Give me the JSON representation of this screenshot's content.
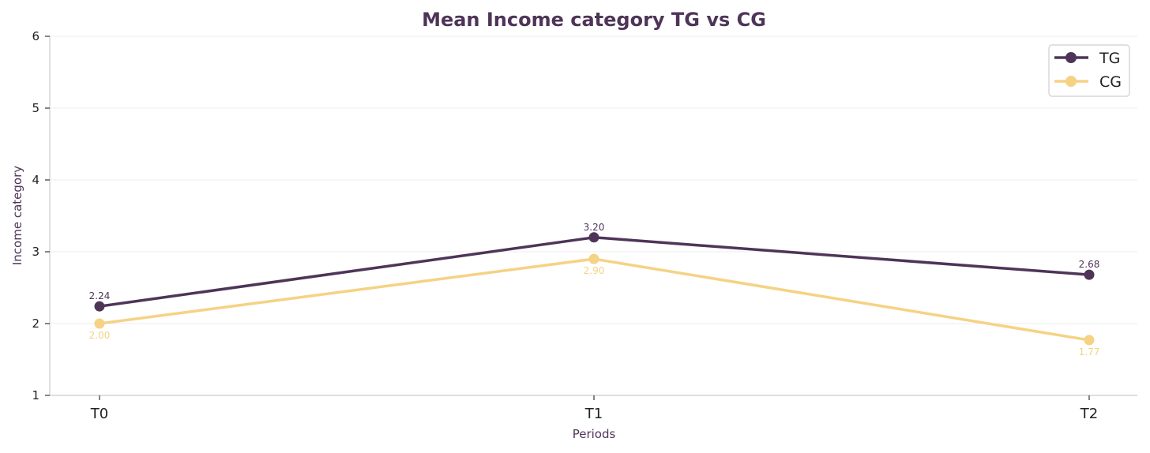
{
  "chart_data": {
    "type": "line",
    "title": "Mean Income category TG vs CG",
    "xlabel": "Periods",
    "ylabel": "Income category",
    "categories": [
      "T0",
      "T1",
      "T2"
    ],
    "ylim": [
      1,
      6
    ],
    "yticks": [
      1,
      2,
      3,
      4,
      5,
      6
    ],
    "grid": "horizontal",
    "legend": "top-right",
    "series": [
      {
        "name": "TG",
        "color": "#4e3558",
        "values": [
          2.24,
          3.2,
          2.68
        ],
        "labels": [
          "2.24",
          "3.20",
          "2.68"
        ],
        "label_position": "above"
      },
      {
        "name": "CG",
        "color": "#f5d284",
        "values": [
          2.0,
          2.9,
          1.77
        ],
        "labels": [
          "2.00",
          "2.90",
          "1.77"
        ],
        "label_position": "below"
      }
    ],
    "colors": {
      "title": "#4e3558",
      "axis_label": "#4e3558",
      "tick": "#222222",
      "grid": "#ececec",
      "axis": "#cccccc"
    }
  }
}
